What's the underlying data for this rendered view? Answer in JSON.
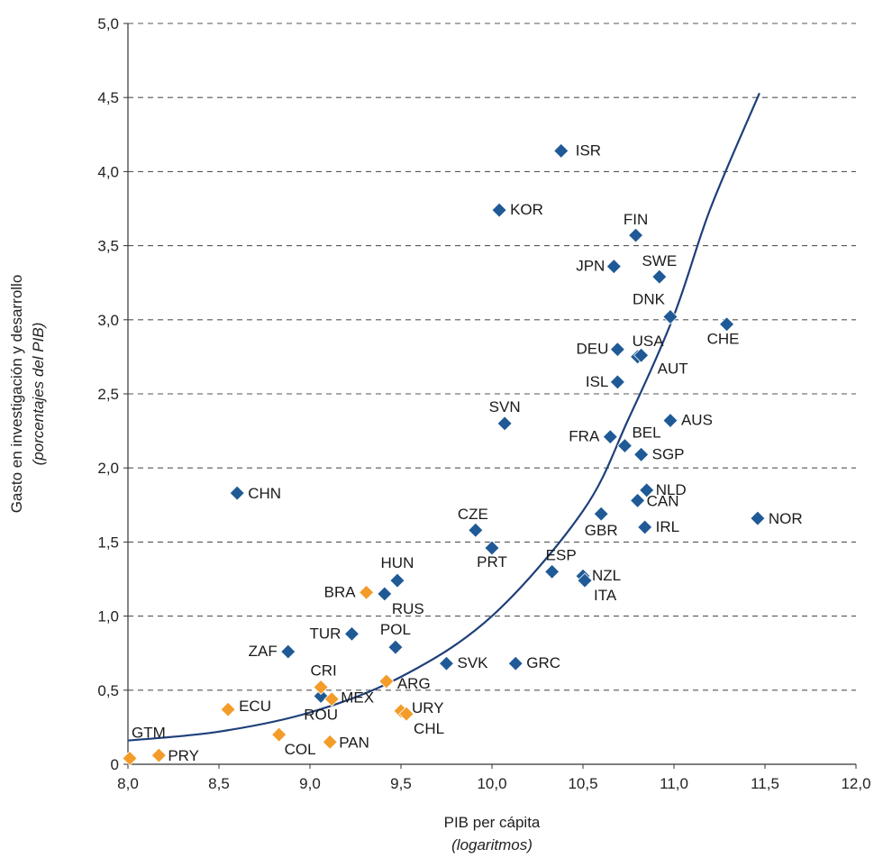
{
  "chart_data": {
    "type": "scatter",
    "title": "",
    "xlabel": "PIB per cápita",
    "xlabel_sub": "(logaritmos)",
    "ylabel": "Gasto en investigación y desarrollo",
    "ylabel_sub": "(porcentajes del PIB)",
    "xlim": [
      8.0,
      12.0
    ],
    "ylim": [
      0,
      5.0
    ],
    "x_ticks": [
      "8,0",
      "8,5",
      "9,0",
      "9,5",
      "10,0",
      "10,5",
      "11,0",
      "11,5",
      "12,0"
    ],
    "y_ticks": [
      "0",
      "0,5",
      "1,0",
      "1,5",
      "2,0",
      "2,5",
      "3,0",
      "3,5",
      "4,0",
      "4,5",
      "5,0"
    ],
    "grid": "horizontal dashed",
    "colors": {
      "blue": "#1f5a96",
      "orange": "#f39c29",
      "trend": "#1f3f7a"
    },
    "series": [
      {
        "color": "#1f5a96",
        "points": [
          {
            "label": "ISR",
            "x": 10.38,
            "y": 4.14
          },
          {
            "label": "KOR",
            "x": 10.04,
            "y": 3.74
          },
          {
            "label": "FIN",
            "x": 10.79,
            "y": 3.57
          },
          {
            "label": "JPN",
            "x": 10.67,
            "y": 3.36
          },
          {
            "label": "SWE",
            "x": 10.92,
            "y": 3.29
          },
          {
            "label": "DNK",
            "x": 10.98,
            "y": 3.02
          },
          {
            "label": "CHE",
            "x": 11.29,
            "y": 2.97
          },
          {
            "label": "DEU",
            "x": 10.69,
            "y": 2.8
          },
          {
            "label": "USA",
            "x": 10.8,
            "y": 2.75
          },
          {
            "label": "AUT",
            "x": 10.82,
            "y": 2.76
          },
          {
            "label": "ISL",
            "x": 10.69,
            "y": 2.58
          },
          {
            "label": "SVN",
            "x": 10.07,
            "y": 2.3
          },
          {
            "label": "AUS",
            "x": 10.98,
            "y": 2.32
          },
          {
            "label": "FRA",
            "x": 10.65,
            "y": 2.21
          },
          {
            "label": "BEL",
            "x": 10.73,
            "y": 2.15
          },
          {
            "label": "SGP",
            "x": 10.82,
            "y": 2.09
          },
          {
            "label": "CHN",
            "x": 8.6,
            "y": 1.83
          },
          {
            "label": "NLD",
            "x": 10.85,
            "y": 1.85
          },
          {
            "label": "CAN",
            "x": 10.8,
            "y": 1.78
          },
          {
            "label": "GBR",
            "x": 10.6,
            "y": 1.69
          },
          {
            "label": "NOR",
            "x": 11.46,
            "y": 1.66
          },
          {
            "label": "IRL",
            "x": 10.84,
            "y": 1.6
          },
          {
            "label": "CZE",
            "x": 9.91,
            "y": 1.58
          },
          {
            "label": "PRT",
            "x": 10.0,
            "y": 1.46
          },
          {
            "label": "ESP",
            "x": 10.33,
            "y": 1.3
          },
          {
            "label": "NZL",
            "x": 10.5,
            "y": 1.27
          },
          {
            "label": "ITA",
            "x": 10.51,
            "y": 1.24
          },
          {
            "label": "HUN",
            "x": 9.48,
            "y": 1.24
          },
          {
            "label": "RUS",
            "x": 9.41,
            "y": 1.15
          },
          {
            "label": "TUR",
            "x": 9.23,
            "y": 0.88
          },
          {
            "label": "POL",
            "x": 9.47,
            "y": 0.79
          },
          {
            "label": "ZAF",
            "x": 8.88,
            "y": 0.76
          },
          {
            "label": "SVK",
            "x": 9.75,
            "y": 0.68
          },
          {
            "label": "GRC",
            "x": 10.13,
            "y": 0.68
          },
          {
            "label": "ROU",
            "x": 9.06,
            "y": 0.46
          }
        ]
      },
      {
        "color": "#f39c29",
        "points": [
          {
            "label": "BRA",
            "x": 9.31,
            "y": 1.16
          },
          {
            "label": "CRI",
            "x": 9.06,
            "y": 0.52
          },
          {
            "label": "ARG",
            "x": 9.42,
            "y": 0.56
          },
          {
            "label": "ECU",
            "x": 8.55,
            "y": 0.37
          },
          {
            "label": "MEX",
            "x": 9.12,
            "y": 0.44
          },
          {
            "label": "URY",
            "x": 9.5,
            "y": 0.36
          },
          {
            "label": "CHL",
            "x": 9.53,
            "y": 0.34
          },
          {
            "label": "COL",
            "x": 8.83,
            "y": 0.2
          },
          {
            "label": "PAN",
            "x": 9.11,
            "y": 0.15
          },
          {
            "label": "GTM",
            "x": 8.01,
            "y": 0.04
          },
          {
            "label": "PRY",
            "x": 8.17,
            "y": 0.06
          }
        ]
      }
    ],
    "trend_line": {
      "type": "exponential",
      "points": [
        [
          8.0,
          0.16
        ],
        [
          8.5,
          0.22
        ],
        [
          9.0,
          0.35
        ],
        [
          9.5,
          0.59
        ],
        [
          10.0,
          1.0
        ],
        [
          10.5,
          1.71
        ],
        [
          10.75,
          2.33
        ],
        [
          11.0,
          3.03
        ],
        [
          11.2,
          3.75
        ],
        [
          11.47,
          4.53
        ]
      ]
    }
  }
}
